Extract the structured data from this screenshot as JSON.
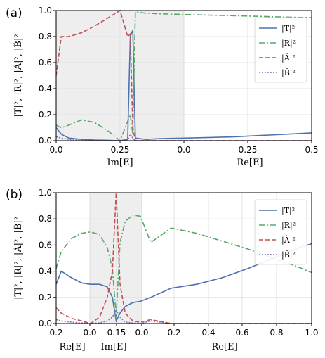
{
  "chart_data": [
    {
      "type": "line",
      "panel_label": "(a)",
      "ylabel": "|T|², |R|², |Ã|², |B̃|²",
      "ylim": [
        0,
        1.0
      ],
      "yticks": [
        "0.0",
        "0.2",
        "0.4",
        "0.6",
        "0.8",
        "1.0"
      ],
      "xticks": [
        "0.0",
        "0.25",
        "0.0",
        "0.25",
        "0.5"
      ],
      "xlabels": [
        {
          "text": "Im[E]",
          "segment": "first"
        },
        {
          "text": "Re[E]",
          "segment": "second"
        }
      ],
      "shaded_segment": "Im[E] 0.0–0.25 and Re[E] 0.0–0.25 (first half of path)",
      "legend": {
        "position": "top-right",
        "entries": [
          "|T|²",
          "|R|²",
          "|Ã|²",
          "|B̃|²"
        ]
      },
      "grid": true,
      "path_coordinate": [
        0,
        0.02,
        0.05,
        0.1,
        0.15,
        0.2,
        0.25,
        0.28,
        0.29,
        0.3,
        0.31,
        0.35,
        0.4,
        0.5,
        0.6,
        0.7,
        0.8,
        0.9,
        1.0
      ],
      "series": [
        {
          "name": "|T|²",
          "color": "#4c72b0",
          "dash": "solid",
          "values": [
            0.1,
            0.05,
            0.02,
            0.01,
            0.005,
            0.003,
            0.0,
            0.01,
            0.8,
            0.85,
            0.02,
            0.01,
            0.015,
            0.02,
            0.025,
            0.03,
            0.04,
            0.05,
            0.06
          ]
        },
        {
          "name": "|R|²",
          "color": "#55a868",
          "dash": "dashdot",
          "values": [
            0.12,
            0.1,
            0.12,
            0.16,
            0.14,
            0.08,
            0.0,
            0.15,
            0.2,
            0.05,
            0.99,
            0.98,
            0.975,
            0.97,
            0.965,
            0.96,
            0.955,
            0.95,
            0.945
          ]
        },
        {
          "name": "|Ã|²",
          "color": "#c44e52",
          "dash": "dashed",
          "values": [
            0.5,
            0.8,
            0.8,
            0.83,
            0.88,
            0.94,
            1.0,
            0.8,
            0.82,
            0.1,
            0.0,
            0.0,
            0.0,
            0.0,
            0.0,
            0.0,
            0.0,
            0.0,
            0.0
          ]
        },
        {
          "name": "|B̃|²",
          "color": "#8172b2",
          "dash": "dotted",
          "values": [
            0.03,
            0.02,
            0.01,
            0.005,
            0.003,
            0.002,
            0.0,
            0.005,
            0.05,
            0.02,
            0.0,
            0.0,
            0.0,
            0.0,
            0.0,
            0.0,
            0.0,
            0.0,
            0.0
          ]
        }
      ]
    },
    {
      "type": "line",
      "panel_label": "(b)",
      "ylabel": "|T|², |R|², |Ã|², |B̃|²",
      "ylim": [
        0,
        1.0
      ],
      "yticks": [
        "0.0",
        "0.2",
        "0.4",
        "0.6",
        "0.8",
        "1.0"
      ],
      "xticks": [
        "0.2",
        "0.0",
        "0.15",
        "0.0",
        "0.2",
        "0.4",
        "0.6",
        "0.8",
        "1.0"
      ],
      "xlabels": [
        {
          "text": "Re[E]",
          "segment": "first"
        },
        {
          "text": "Im[E]",
          "segment": "second"
        },
        {
          "text": "Re[E]",
          "segment": "third"
        }
      ],
      "legend": {
        "position": "top-right",
        "entries": [
          "|T|²",
          "|R|²",
          "|Ã|²",
          "|B̃|²"
        ]
      },
      "grid": true,
      "path_coordinate": [
        0,
        0.02,
        0.06,
        0.1,
        0.135,
        0.17,
        0.2,
        0.22,
        0.235,
        0.25,
        0.27,
        0.3,
        0.33,
        0.37,
        0.45,
        0.55,
        0.65,
        0.75,
        0.85,
        0.95,
        1.0
      ],
      "series": [
        {
          "name": "|T|²",
          "color": "#4c72b0",
          "dash": "solid",
          "values": [
            0.3,
            0.4,
            0.35,
            0.31,
            0.3,
            0.3,
            0.28,
            0.2,
            0.02,
            0.08,
            0.13,
            0.16,
            0.17,
            0.2,
            0.27,
            0.3,
            0.35,
            0.42,
            0.5,
            0.58,
            0.61
          ]
        },
        {
          "name": "|R|²",
          "color": "#55a868",
          "dash": "dashdot",
          "values": [
            0.42,
            0.55,
            0.65,
            0.69,
            0.7,
            0.68,
            0.58,
            0.42,
            0.05,
            0.62,
            0.78,
            0.83,
            0.82,
            0.62,
            0.73,
            0.69,
            0.63,
            0.57,
            0.5,
            0.43,
            0.39
          ]
        },
        {
          "name": "|Ã|²",
          "color": "#c44e52",
          "dash": "dashed",
          "values": [
            0.12,
            0.08,
            0.04,
            0.02,
            0.0,
            0.05,
            0.2,
            0.4,
            1.0,
            0.3,
            0.08,
            0.02,
            0.01,
            0.03,
            0.0,
            0.0,
            0.0,
            0.0,
            0.0,
            0.0,
            0.0
          ]
        },
        {
          "name": "|B̃|²",
          "color": "#8172b2",
          "dash": "dotted",
          "values": [
            0.03,
            0.02,
            0.01,
            0.005,
            0.0,
            0.005,
            0.02,
            0.05,
            0.1,
            0.05,
            0.01,
            0.005,
            0.0,
            0.02,
            0.0,
            0.0,
            0.0,
            0.0,
            0.0,
            0.0,
            0.0
          ]
        }
      ]
    }
  ]
}
